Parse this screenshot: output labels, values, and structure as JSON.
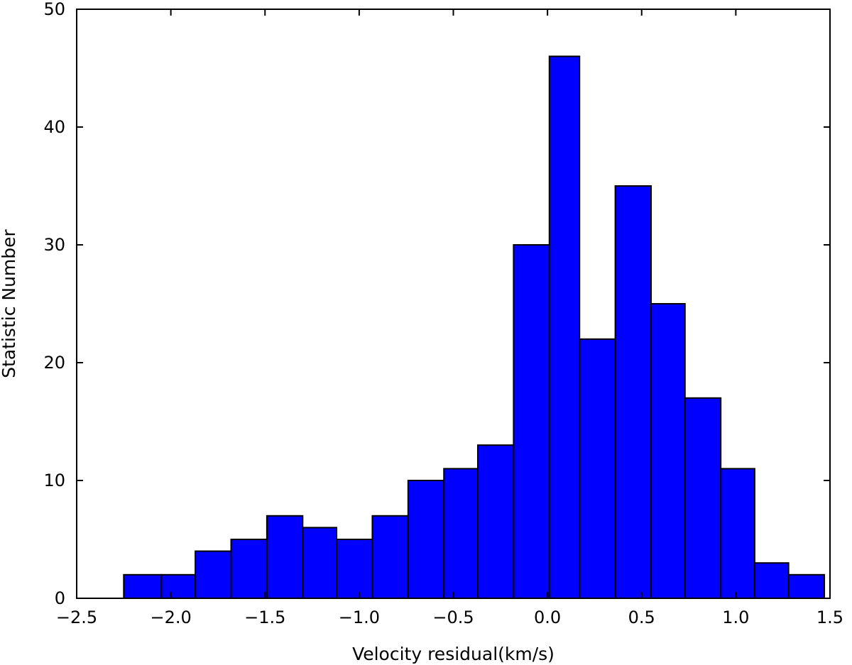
{
  "chart_data": {
    "type": "bar",
    "title": "",
    "xlabel": "Velocity residual(km/s)",
    "ylabel": "Statistic Number",
    "xlim": [
      -2.5,
      1.5
    ],
    "ylim": [
      0,
      50
    ],
    "xticks": [
      -2.5,
      -2.0,
      -1.5,
      -1.0,
      -0.5,
      0.0,
      0.5,
      1.0,
      1.5
    ],
    "xtick_labels": [
      "−2.5",
      "−2.0",
      "−1.5",
      "−1.0",
      "−0.5",
      "0.0",
      "0.5",
      "1.0",
      "1.5"
    ],
    "yticks": [
      0,
      10,
      20,
      30,
      40,
      50
    ],
    "ytick_labels": [
      "0",
      "10",
      "20",
      "30",
      "40",
      "50"
    ],
    "bin_edges": [
      -2.25,
      -2.05,
      -1.87,
      -1.68,
      -1.49,
      -1.3,
      -1.12,
      -0.93,
      -0.74,
      -0.55,
      -0.37,
      -0.18,
      0.01,
      0.17,
      0.36,
      0.55,
      0.73,
      0.92,
      1.1,
      1.28,
      1.47
    ],
    "values": [
      2,
      2,
      4,
      5,
      7,
      6,
      5,
      7,
      10,
      11,
      13,
      30,
      46,
      22,
      35,
      25,
      17,
      11,
      3,
      2
    ],
    "bar_color": "#0000ff",
    "grid": false,
    "legend": "none"
  }
}
